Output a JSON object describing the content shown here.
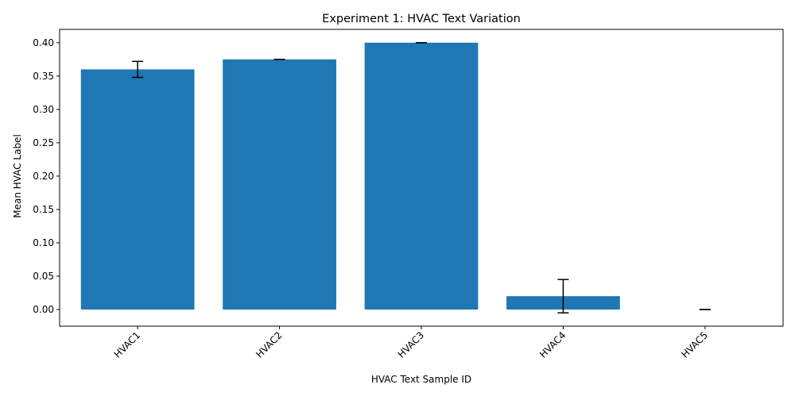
{
  "chart_data": {
    "type": "bar",
    "title": "Experiment 1: HVAC Text Variation",
    "xlabel": "HVAC Text Sample ID",
    "ylabel": "Mean HVAC Label",
    "categories": [
      "HVAC1",
      "HVAC2",
      "HVAC3",
      "HVAC4",
      "HVAC5"
    ],
    "values": [
      0.36,
      0.375,
      0.4,
      0.02,
      0.0
    ],
    "errors": [
      0.012,
      0.0,
      0.0,
      0.025,
      0.0
    ],
    "ylim": [
      -0.025,
      0.42
    ],
    "yticks": [
      "0.00",
      "0.05",
      "0.10",
      "0.15",
      "0.20",
      "0.25",
      "0.30",
      "0.35",
      "0.40"
    ],
    "bar_color": "#1f77b4",
    "error_bar_color": "#000000",
    "xtick_rotation": "45 degrees",
    "grid": false
  }
}
